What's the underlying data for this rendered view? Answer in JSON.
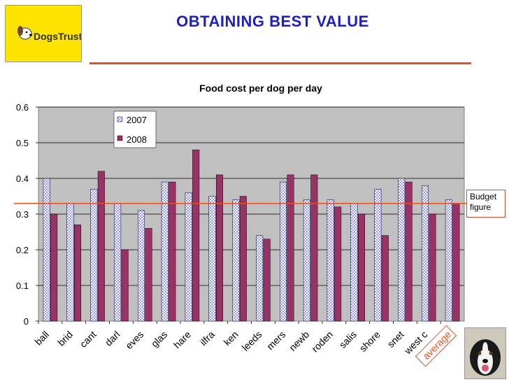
{
  "header": {
    "title": "OBTAINING BEST VALUE",
    "logo_text": "DogsTrust"
  },
  "budget_label": [
    "Budget",
    "figure"
  ],
  "colors": {
    "title": "#1e1ec8",
    "rule": "#e8501a",
    "plot_bg": "#c0c0c0",
    "series_2007_fill": "#ffffff",
    "series_2007_pattern": "#9999ff",
    "series_2008": "#993366",
    "budget_line": "#e8501a"
  },
  "chart_data": {
    "type": "bar",
    "title": "Food cost per dog per day",
    "categories": [
      "ball",
      "brid",
      "cant",
      "darl",
      "eves",
      "glas",
      "hare",
      "ilfra",
      "ken",
      "leeds",
      "mers",
      "newb",
      "roden",
      "salis",
      "shore",
      "snet",
      "west c",
      "average"
    ],
    "series": [
      {
        "name": "2007",
        "values": [
          0.4,
          0.33,
          0.37,
          0.33,
          0.31,
          0.39,
          0.36,
          0.35,
          0.34,
          0.24,
          0.39,
          0.34,
          0.34,
          0.33,
          0.37,
          0.4,
          0.38,
          0.34
        ]
      },
      {
        "name": "2008",
        "values": [
          0.3,
          0.27,
          0.42,
          0.2,
          0.26,
          0.39,
          0.48,
          0.41,
          0.35,
          0.23,
          0.41,
          0.41,
          0.32,
          0.3,
          0.24,
          0.39,
          0.3,
          0.33
        ]
      }
    ],
    "ylim": [
      0,
      0.6
    ],
    "yticks": [
      "0",
      "0.1",
      "0.2",
      "0.3",
      "0.4",
      "0.5",
      "0.6"
    ],
    "budget_value": 0.33,
    "grid": true,
    "legend_position": "top-left"
  }
}
